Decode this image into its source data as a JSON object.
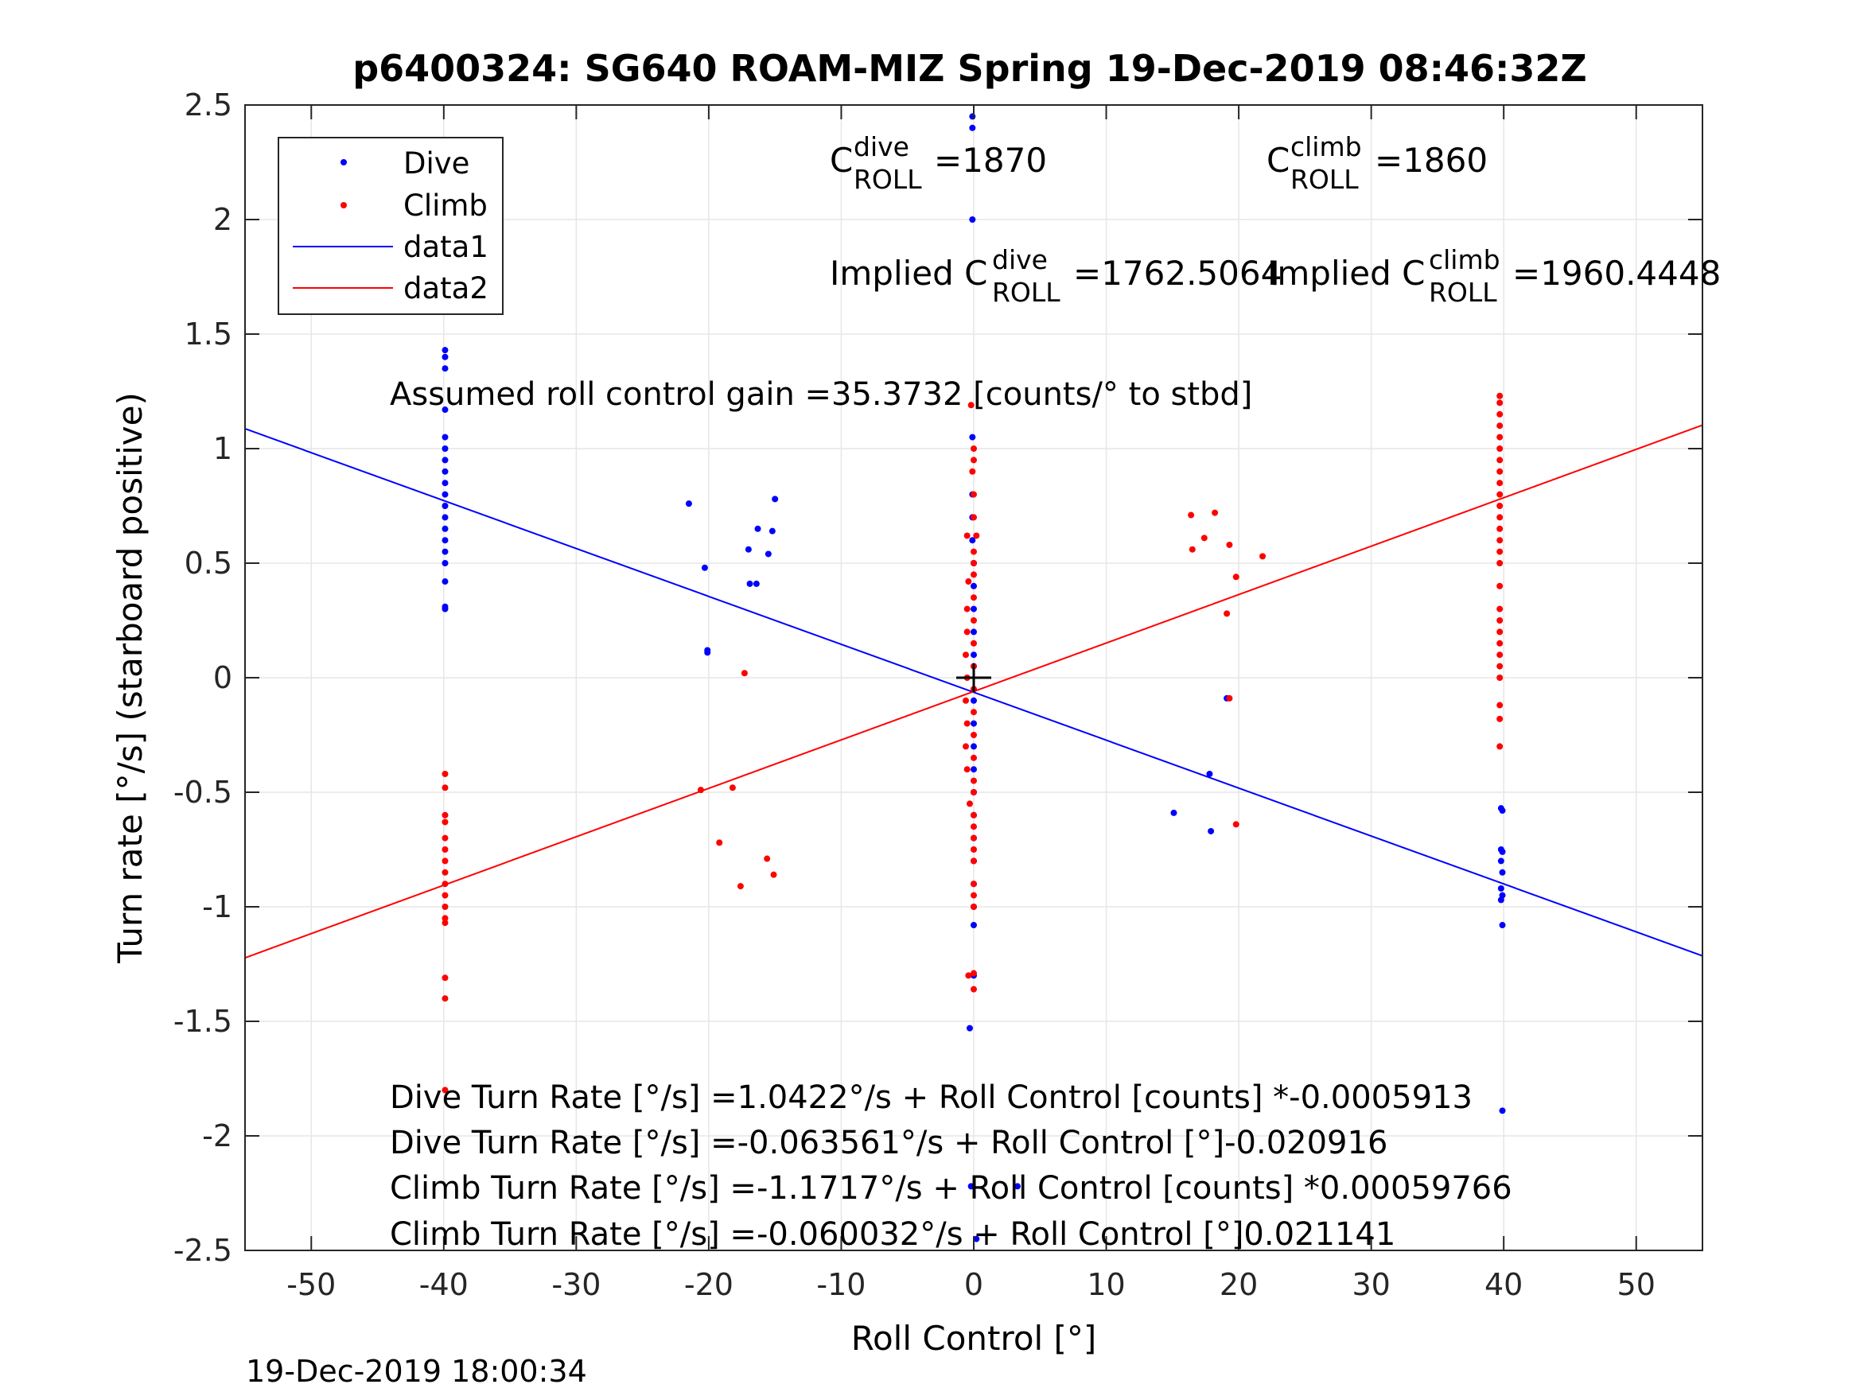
{
  "chart_data": {
    "type": "scatter",
    "title": "p6400324: SG640 ROAM-MIZ Spring 19-Dec-2019 08:46:32Z",
    "xlabel": "Roll Control [°]",
    "ylabel": "Turn rate [°/s] (starboard positive)",
    "xlim": [
      -55,
      55
    ],
    "ylim": [
      -2.5,
      2.5
    ],
    "xticks": [
      -50,
      -40,
      -30,
      -20,
      -10,
      0,
      10,
      20,
      30,
      40,
      50
    ],
    "yticks": [
      -2.5,
      -2,
      -1.5,
      -1,
      -0.5,
      0,
      0.5,
      1,
      1.5,
      2,
      2.5
    ],
    "grid": true,
    "legend_position": "top-left",
    "legend": [
      {
        "label": "Dive",
        "kind": "marker",
        "color": "#0000ff"
      },
      {
        "label": "Climb",
        "kind": "marker",
        "color": "#ff0000"
      },
      {
        "label": "data1",
        "kind": "line",
        "color": "#0000ff"
      },
      {
        "label": "data2",
        "kind": "line",
        "color": "#ff0000"
      }
    ],
    "series": [
      {
        "name": "Dive",
        "color": "#0000ff",
        "points": [
          [
            -0.1,
            2.45
          ],
          [
            -0.1,
            2.4
          ],
          [
            -0.1,
            2.0
          ],
          [
            -0.1,
            1.05
          ],
          [
            -0.1,
            0.8
          ],
          [
            -0.1,
            0.7
          ],
          [
            -0.1,
            0.6
          ],
          [
            0,
            0.5
          ],
          [
            0,
            0.4
          ],
          [
            0,
            0.3
          ],
          [
            0,
            0.2
          ],
          [
            0,
            0.1
          ],
          [
            0,
            0.05
          ],
          [
            0,
            -0.05
          ],
          [
            0,
            -0.1
          ],
          [
            0,
            -0.2
          ],
          [
            0,
            -0.3
          ],
          [
            0,
            -0.4
          ],
          [
            0,
            -0.5
          ],
          [
            0,
            -0.6
          ],
          [
            0,
            -0.7
          ],
          [
            0,
            -0.8
          ],
          [
            0,
            -0.9
          ],
          [
            0,
            -1.0
          ],
          [
            0,
            -1.08
          ],
          [
            0,
            -1.3
          ],
          [
            -0.3,
            -1.53
          ],
          [
            -0.2,
            -2.22
          ],
          [
            0.2,
            -2.45
          ],
          [
            3.3,
            -2.22
          ],
          [
            -39.9,
            1.43
          ],
          [
            -39.9,
            1.4
          ],
          [
            -39.9,
            1.35
          ],
          [
            -39.9,
            1.17
          ],
          [
            -39.9,
            1.05
          ],
          [
            -39.9,
            1.0
          ],
          [
            -39.9,
            0.95
          ],
          [
            -39.9,
            0.9
          ],
          [
            -39.9,
            0.85
          ],
          [
            -39.9,
            0.8
          ],
          [
            -39.9,
            0.75
          ],
          [
            -39.9,
            0.7
          ],
          [
            -39.9,
            0.65
          ],
          [
            -39.9,
            0.6
          ],
          [
            -39.9,
            0.55
          ],
          [
            -39.9,
            0.5
          ],
          [
            -39.9,
            0.42
          ],
          [
            -39.9,
            0.31
          ],
          [
            -39.9,
            0.3
          ],
          [
            -21.5,
            0.76
          ],
          [
            -20.3,
            0.48
          ],
          [
            -20.1,
            0.12
          ],
          [
            -20.1,
            0.11
          ],
          [
            -17.0,
            0.56
          ],
          [
            -16.9,
            0.41
          ],
          [
            -16.4,
            0.41
          ],
          [
            -16.3,
            0.65
          ],
          [
            -15.5,
            0.54
          ],
          [
            -15.2,
            0.64
          ],
          [
            -15.0,
            0.78
          ],
          [
            15.1,
            -0.59
          ],
          [
            17.8,
            -0.42
          ],
          [
            17.9,
            -0.67
          ],
          [
            19.1,
            -0.09
          ],
          [
            39.8,
            -0.57
          ],
          [
            39.9,
            -0.58
          ],
          [
            39.8,
            -0.75
          ],
          [
            39.9,
            -0.76
          ],
          [
            39.8,
            -0.8
          ],
          [
            39.9,
            -0.85
          ],
          [
            39.8,
            -0.92
          ],
          [
            39.9,
            -0.95
          ],
          [
            39.8,
            -0.97
          ],
          [
            39.9,
            -1.08
          ],
          [
            39.9,
            -1.89
          ]
        ]
      },
      {
        "name": "Climb",
        "color": "#ff0000",
        "points": [
          [
            -0.2,
            1.19
          ],
          [
            0,
            1.0
          ],
          [
            0,
            0.95
          ],
          [
            -0.1,
            0.9
          ],
          [
            0,
            0.8
          ],
          [
            0,
            0.7
          ],
          [
            0.2,
            0.62
          ],
          [
            -0.5,
            0.62
          ],
          [
            0,
            0.55
          ],
          [
            0,
            0.5
          ],
          [
            0,
            0.45
          ],
          [
            -0.4,
            0.42
          ],
          [
            0,
            0.35
          ],
          [
            -0.5,
            0.3
          ],
          [
            0,
            0.25
          ],
          [
            -0.5,
            0.2
          ],
          [
            0,
            0.15
          ],
          [
            -0.6,
            0.1
          ],
          [
            0,
            0.05
          ],
          [
            -0.5,
            0.0
          ],
          [
            0,
            -0.05
          ],
          [
            -0.6,
            -0.1
          ],
          [
            0,
            -0.15
          ],
          [
            -0.5,
            -0.2
          ],
          [
            0,
            -0.25
          ],
          [
            -0.6,
            -0.3
          ],
          [
            0,
            -0.35
          ],
          [
            -0.5,
            -0.4
          ],
          [
            0,
            -0.45
          ],
          [
            0,
            -0.5
          ],
          [
            -0.3,
            -0.55
          ],
          [
            0,
            -0.6
          ],
          [
            0,
            -0.65
          ],
          [
            0,
            -0.7
          ],
          [
            0,
            -0.75
          ],
          [
            0,
            -0.8
          ],
          [
            0,
            -0.9
          ],
          [
            0,
            -0.95
          ],
          [
            0,
            -1.0
          ],
          [
            -0.4,
            -1.3
          ],
          [
            0,
            -1.29
          ],
          [
            0,
            -1.36
          ],
          [
            -39.9,
            -0.42
          ],
          [
            -39.9,
            -0.48
          ],
          [
            -39.9,
            -0.6
          ],
          [
            -39.9,
            -0.63
          ],
          [
            -39.9,
            -0.7
          ],
          [
            -39.9,
            -0.75
          ],
          [
            -39.9,
            -0.8
          ],
          [
            -39.9,
            -0.85
          ],
          [
            -39.9,
            -0.9
          ],
          [
            -39.9,
            -0.95
          ],
          [
            -39.9,
            -1.0
          ],
          [
            -39.9,
            -1.05
          ],
          [
            -39.9,
            -1.07
          ],
          [
            -39.9,
            -1.31
          ],
          [
            -39.9,
            -1.4
          ],
          [
            -39.9,
            -1.8
          ],
          [
            -20.6,
            -0.49
          ],
          [
            -19.2,
            -0.72
          ],
          [
            -18.2,
            -0.48
          ],
          [
            -17.6,
            -0.91
          ],
          [
            -17.3,
            0.02
          ],
          [
            -15.6,
            -0.79
          ],
          [
            -15.1,
            -0.86
          ],
          [
            16.4,
            0.71
          ],
          [
            16.5,
            0.56
          ],
          [
            17.4,
            0.61
          ],
          [
            18.2,
            0.72
          ],
          [
            19.1,
            0.28
          ],
          [
            19.3,
            0.58
          ],
          [
            19.3,
            -0.09
          ],
          [
            19.8,
            0.44
          ],
          [
            19.8,
            -0.64
          ],
          [
            21.8,
            0.53
          ],
          [
            39.7,
            1.23
          ],
          [
            39.7,
            1.2
          ],
          [
            39.7,
            1.15
          ],
          [
            39.7,
            1.1
          ],
          [
            39.7,
            1.05
          ],
          [
            39.7,
            1.0
          ],
          [
            39.7,
            0.95
          ],
          [
            39.7,
            0.9
          ],
          [
            39.7,
            0.85
          ],
          [
            39.7,
            0.8
          ],
          [
            39.7,
            0.75
          ],
          [
            39.7,
            0.7
          ],
          [
            39.7,
            0.65
          ],
          [
            39.7,
            0.6
          ],
          [
            39.7,
            0.55
          ],
          [
            39.7,
            0.5
          ],
          [
            39.7,
            0.4
          ],
          [
            39.7,
            0.3
          ],
          [
            39.7,
            0.25
          ],
          [
            39.7,
            0.2
          ],
          [
            39.7,
            0.15
          ],
          [
            39.7,
            0.1
          ],
          [
            39.7,
            0.05
          ],
          [
            39.7,
            0.0
          ],
          [
            39.7,
            -0.12
          ],
          [
            39.7,
            -0.18
          ],
          [
            39.7,
            -0.3
          ]
        ]
      },
      {
        "name": "data1",
        "type": "line",
        "color": "#0000ff",
        "x": [
          -55,
          55
        ],
        "y": [
          1.0869,
          -1.214
        ]
      },
      {
        "name": "data2",
        "type": "line",
        "color": "#ff0000",
        "x": [
          -55,
          55
        ],
        "y": [
          -1.2228,
          1.1027
        ]
      }
    ],
    "center_marker": {
      "x": 0,
      "y": 0,
      "symbol": "+",
      "color": "#000000"
    },
    "annotations": {
      "c_dive_base": "C",
      "c_dive_sup": "dive",
      "c_dive_sub": "ROLL",
      "c_dive_value": "=1870",
      "c_climb_base": "C",
      "c_climb_sup": "climb",
      "c_climb_sub": "ROLL",
      "c_climb_value": "=1860",
      "implied_dive_prefix": "Implied C",
      "implied_dive_sup": "dive",
      "implied_dive_sub": "ROLL",
      "implied_dive_value": "=1762.5064",
      "implied_climb_prefix": "Implied C",
      "implied_climb_sup": "climb",
      "implied_climb_sub": "ROLL",
      "implied_climb_value": "=1960.4448",
      "gain": "Assumed roll control gain =35.3732 [counts/° to stbd]",
      "eq1": "Dive Turn Rate [°/s] =1.0422°/s + Roll Control [counts] *-0.0005913",
      "eq2": "Dive Turn Rate [°/s] =-0.063561°/s + Roll Control [°]-0.020916",
      "eq3": "Climb Turn Rate [°/s] =-1.1717°/s + Roll Control [counts] *0.00059766",
      "eq4": "Climb Turn Rate [°/s] =-0.060032°/s + Roll Control [°]0.021141"
    }
  },
  "footer_timestamp": "19-Dec-2019 18:00:34"
}
